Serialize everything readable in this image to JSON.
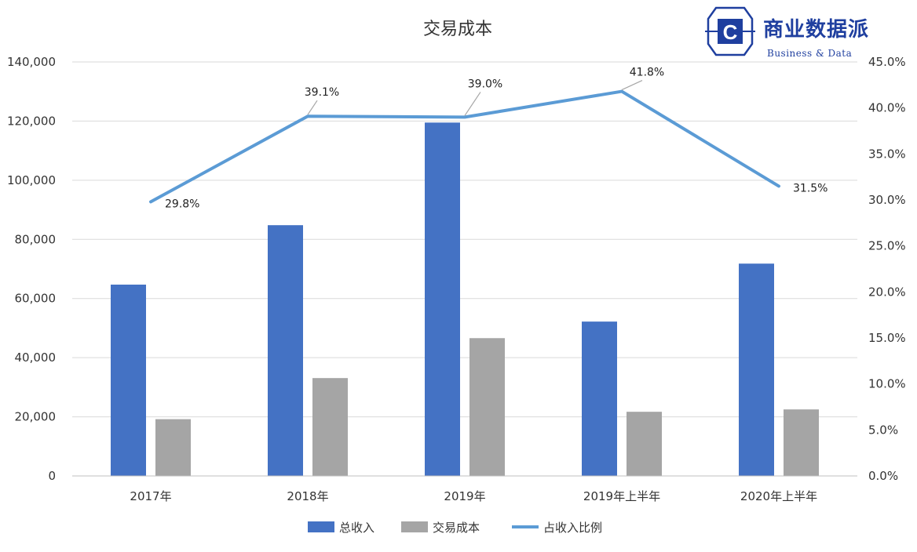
{
  "chart_data": {
    "type": "bar",
    "title": "交易成本",
    "categories": [
      "2017年",
      "2018年",
      "2019年",
      "2019年上半年",
      "2020年上半年"
    ],
    "series": [
      {
        "name": "总收入",
        "type": "bar",
        "axis": "left",
        "color": "#4472C4",
        "values": [
          64700,
          84800,
          119500,
          52200,
          71800
        ]
      },
      {
        "name": "交易成本",
        "type": "bar",
        "axis": "left",
        "color": "#A5A5A5",
        "values": [
          19200,
          33100,
          46600,
          21700,
          22500
        ]
      },
      {
        "name": "占收入比例",
        "type": "line",
        "axis": "right",
        "color": "#5B9BD5",
        "values": [
          0.298,
          0.391,
          0.39,
          0.418,
          0.315
        ],
        "labels": [
          "29.8%",
          "39.1%",
          "39.0%",
          "41.8%",
          "31.5%"
        ]
      }
    ],
    "y_left": {
      "min": 0,
      "max": 140000,
      "ticks": [
        "0",
        "20,000",
        "40,000",
        "60,000",
        "80,000",
        "100,000",
        "120,000",
        "140,000"
      ]
    },
    "y_right": {
      "min": 0,
      "max": 0.45,
      "ticks": [
        "0.0%",
        "5.0%",
        "10.0%",
        "15.0%",
        "20.0%",
        "25.0%",
        "30.0%",
        "35.0%",
        "40.0%",
        "45.0%"
      ]
    },
    "grid": true,
    "legend_position": "bottom"
  },
  "logo": {
    "name_cn": "商业数据派",
    "name_en": "Business & Data",
    "letter": "C"
  }
}
